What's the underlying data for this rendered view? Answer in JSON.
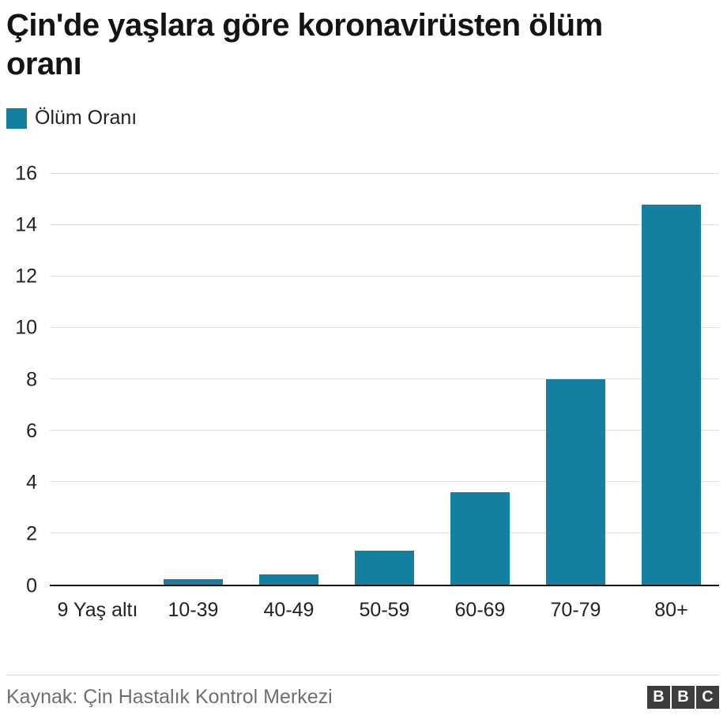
{
  "title": "Çin'de yaşlara göre koronavirüsten ölüm oranı",
  "legend": {
    "label": "Ölüm Oranı",
    "color": "#1380A1"
  },
  "footer": {
    "source": "Kaynak: Çin Hastalık Kontrol Merkezi",
    "logo_letters": [
      "B",
      "B",
      "C"
    ]
  },
  "chart_data": {
    "type": "bar",
    "title": "Çin'de yaşlara göre koronavirüsten ölüm oranı",
    "categories": [
      "9 Yaş altı",
      "10-39",
      "40-49",
      "50-59",
      "60-69",
      "70-79",
      "80+"
    ],
    "values": [
      0,
      0.2,
      0.4,
      1.3,
      3.6,
      8.0,
      14.8
    ],
    "series_name": "Ölüm Oranı",
    "bar_color": "#1380A1",
    "xlabel": "",
    "ylabel": "",
    "ylim": [
      0,
      16
    ],
    "ytick_step": 2,
    "grid": true,
    "legend_position": "top-left"
  }
}
